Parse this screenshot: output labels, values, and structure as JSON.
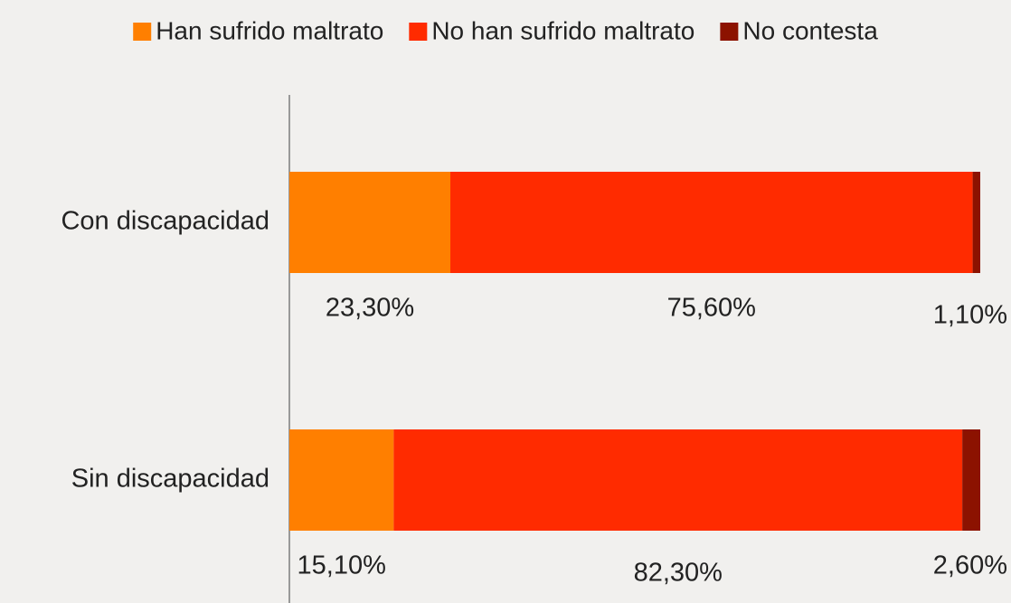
{
  "chart_data": {
    "type": "stacked-barh",
    "categories": [
      "Con discapacidad",
      "Sin discapacidad"
    ],
    "series": [
      {
        "name": "Han sufrido maltrato",
        "color": "#ff7f00",
        "values": [
          23.3,
          15.1
        ],
        "value_labels": [
          "23,30%",
          "15,10%"
        ]
      },
      {
        "name": "No han sufrido maltrato",
        "color": "#ff2b00",
        "values": [
          75.6,
          82.3
        ],
        "value_labels": [
          "75,60%",
          "82,30%"
        ]
      },
      {
        "name": "No contesta",
        "color": "#8c1200",
        "values": [
          1.1,
          2.6
        ],
        "value_labels": [
          "1,10%",
          "2,60%"
        ]
      }
    ]
  }
}
